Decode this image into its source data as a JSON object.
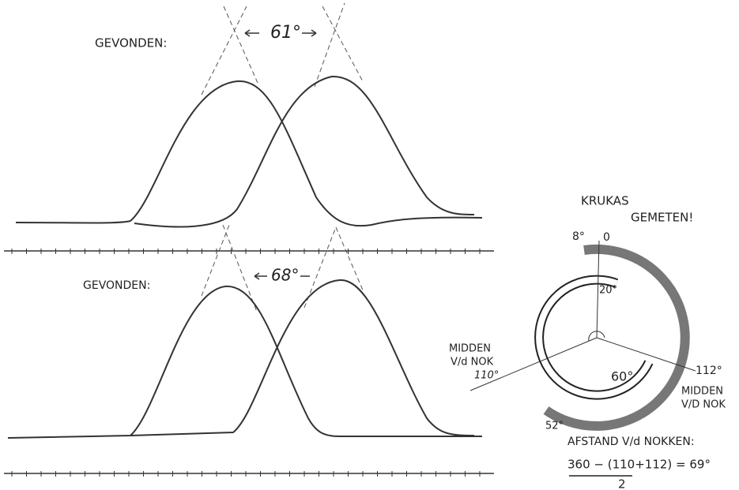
{
  "top_panel": {
    "label": "GEVONDEN:",
    "angle": "61°"
  },
  "bottom_panel": {
    "label": "GEVONDEN:",
    "angle": "68°"
  },
  "crank_diagram": {
    "title": [
      "KRUKAS",
      "GEMETEN!"
    ],
    "marks": {
      "top_left": "8°",
      "top": "0",
      "inner_start": "20°",
      "inner_end": "60°",
      "outer_end": "52°"
    },
    "left_label": [
      "MIDDEN",
      "V/d NOK",
      "110°"
    ],
    "right_label": [
      "112°",
      "MIDDEN",
      "V/D NOK"
    ],
    "formula": {
      "label": "AFSTAND V/d NOKKEN:",
      "numerator": "360 − (110+112) = 69°",
      "denominator": "2"
    }
  }
}
